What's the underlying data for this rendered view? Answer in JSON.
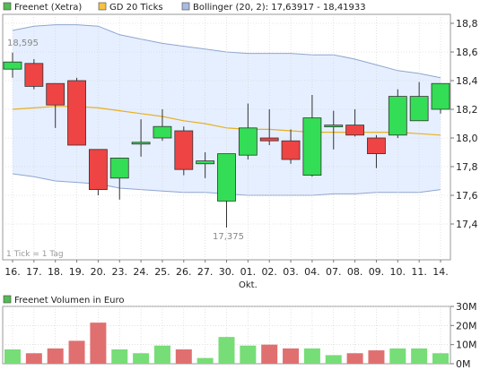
{
  "legend": {
    "price_label": "Freenet (Xetra)",
    "gd_label": "GD 20 Ticks",
    "bollinger_label": "Bollinger (20, 2): 17,63917 - 18,41933"
  },
  "colors": {
    "up": "#33dd55",
    "down": "#ee4444",
    "gd_line": "#e8b020",
    "band_fill": "#e6efff",
    "band_line": "#8ea6cf",
    "grid": "#d0d0d0",
    "frame": "#999999",
    "price_legend_box": "#55bb55",
    "gd_legend_box": "#f5c242",
    "bollinger_legend_box": "#a8bce0"
  },
  "annotations": {
    "high_label": "18,595",
    "low_label": "17,375",
    "tick_note": "1 Tick = 1 Tag",
    "month_label": "Okt."
  },
  "chart_data": [
    {
      "type": "candlestick",
      "title": "Freenet (Xetra)",
      "ylim": [
        17.2,
        18.8
      ],
      "y_ticks": [
        17.4,
        17.6,
        17.8,
        18.0,
        18.2,
        18.4,
        18.6,
        18.8
      ],
      "y_tick_labels": [
        "17,4",
        "17,6",
        "17,8",
        "18,0",
        "18,2",
        "18,4",
        "18,6",
        "18,8"
      ],
      "y_axis_side": "right",
      "grid": true,
      "categories": [
        "16.",
        "17.",
        "18.",
        "19.",
        "20.",
        "23.",
        "24.",
        "25.",
        "26.",
        "27.",
        "30.",
        "01.",
        "02.",
        "03.",
        "04.",
        "07.",
        "08.",
        "09.",
        "10.",
        "11.",
        "14."
      ],
      "open": [
        18.48,
        18.52,
        18.38,
        18.4,
        17.92,
        17.72,
        17.96,
        18.0,
        18.05,
        17.82,
        17.56,
        17.88,
        18.0,
        17.98,
        17.74,
        18.08,
        18.09,
        18.0,
        18.02,
        18.12,
        18.2
      ],
      "close": [
        18.53,
        18.36,
        18.23,
        17.95,
        17.64,
        17.86,
        17.97,
        18.08,
        17.78,
        17.84,
        17.89,
        18.07,
        17.98,
        17.85,
        18.14,
        18.09,
        18.02,
        17.89,
        18.29,
        18.29,
        18.38
      ],
      "high": [
        18.595,
        18.55,
        18.38,
        18.42,
        17.92,
        17.86,
        18.13,
        18.2,
        18.08,
        17.9,
        17.89,
        18.24,
        18.2,
        18.06,
        18.3,
        18.19,
        18.2,
        18.02,
        18.34,
        18.39,
        18.38
      ],
      "low": [
        18.42,
        18.34,
        18.07,
        17.95,
        17.6,
        17.57,
        17.87,
        17.98,
        17.74,
        17.72,
        17.375,
        17.85,
        17.95,
        17.82,
        17.73,
        17.92,
        18.01,
        17.79,
        18.0,
        18.12,
        18.17
      ],
      "gd_20": [
        18.2,
        18.21,
        18.22,
        18.22,
        18.21,
        18.19,
        18.17,
        18.15,
        18.12,
        18.1,
        18.07,
        18.06,
        18.06,
        18.05,
        18.04,
        18.04,
        18.04,
        18.04,
        18.04,
        18.03,
        18.02
      ],
      "bollinger_upper": [
        18.75,
        18.78,
        18.79,
        18.79,
        18.78,
        18.72,
        18.69,
        18.66,
        18.64,
        18.62,
        18.6,
        18.59,
        18.59,
        18.59,
        18.58,
        18.58,
        18.55,
        18.51,
        18.47,
        18.45,
        18.42
      ],
      "bollinger_lower": [
        17.75,
        17.73,
        17.7,
        17.69,
        17.68,
        17.65,
        17.64,
        17.63,
        17.62,
        17.62,
        17.61,
        17.6,
        17.6,
        17.6,
        17.6,
        17.61,
        17.61,
        17.62,
        17.62,
        17.62,
        17.64
      ]
    },
    {
      "type": "bar",
      "title": "Freenet Volumen in Euro",
      "categories": [
        "16.",
        "17.",
        "18.",
        "19.",
        "20.",
        "23.",
        "24.",
        "25.",
        "26.",
        "27.",
        "30.",
        "01.",
        "02.",
        "03.",
        "04.",
        "07.",
        "08.",
        "09.",
        "10.",
        "11.",
        "14."
      ],
      "values": [
        7.5,
        5.5,
        8,
        12,
        21.5,
        7.5,
        5.5,
        9.5,
        7.5,
        3,
        14,
        9.5,
        10,
        8,
        8,
        4.5,
        5.5,
        7,
        8,
        8,
        5.5
      ],
      "ylim": [
        0,
        30
      ],
      "y_ticks": [
        0,
        10,
        20,
        30
      ],
      "y_tick_labels": [
        "0M",
        "10M",
        "20M",
        "30M"
      ],
      "y_axis_side": "right",
      "grid": true
    }
  ]
}
